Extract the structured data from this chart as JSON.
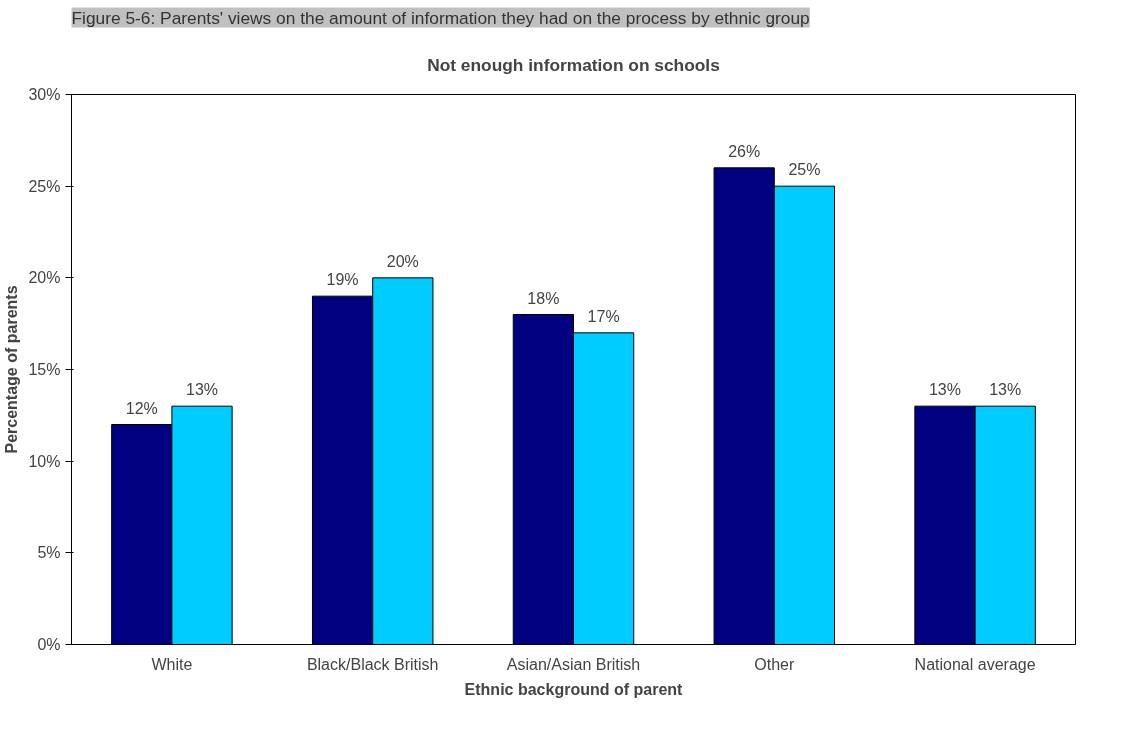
{
  "chart_data": {
    "type": "bar",
    "title": "Not enough information on schools",
    "annotations": [
      "Figure 5-6: Parents' views on the amount of information they had on the process by ethnic group"
    ],
    "xlabel": "Ethnic background of parent",
    "ylabel": "Percentage of parents",
    "categories": [
      "White",
      "Black/Black British",
      "Asian/Asian British",
      "Other",
      "National average"
    ],
    "series": [
      {
        "color": "#000080",
        "values": [
          12,
          19,
          18,
          26,
          13
        ],
        "value_labels": [
          "12%",
          "19%",
          "18%",
          "26%",
          "13%"
        ]
      },
      {
        "color": "#00ccff",
        "values": [
          13,
          20,
          17,
          25,
          13
        ],
        "value_labels": [
          "13%",
          "20%",
          "17%",
          "25%",
          "13%"
        ]
      }
    ],
    "ylim": [
      0,
      30
    ],
    "yticks": [
      {
        "value": 0,
        "label": "0%"
      },
      {
        "value": 5,
        "label": "5%"
      },
      {
        "value": 10,
        "label": "10%"
      },
      {
        "value": 15,
        "label": "15%"
      },
      {
        "value": 20,
        "label": "20%"
      },
      {
        "value": 25,
        "label": "25%"
      },
      {
        "value": 30,
        "label": "30%"
      }
    ],
    "grid": false
  }
}
